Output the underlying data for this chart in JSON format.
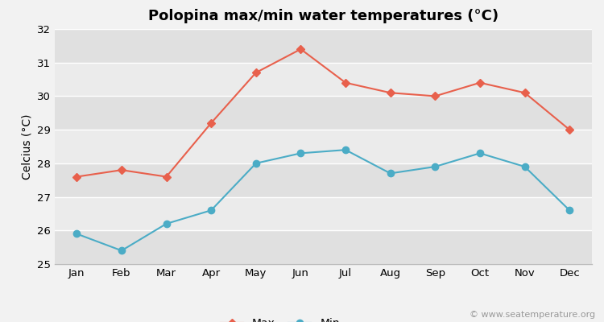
{
  "title": "Polopina max/min water temperatures (°C)",
  "ylabel": "Celcius (°C)",
  "months": [
    "Jan",
    "Feb",
    "Mar",
    "Apr",
    "May",
    "Jun",
    "Jul",
    "Aug",
    "Sep",
    "Oct",
    "Nov",
    "Dec"
  ],
  "max_temps": [
    27.6,
    27.8,
    27.6,
    29.2,
    30.7,
    31.4,
    30.4,
    30.1,
    30.0,
    30.4,
    30.1,
    29.0
  ],
  "min_temps": [
    25.9,
    25.4,
    26.2,
    26.6,
    28.0,
    28.3,
    28.4,
    27.7,
    27.9,
    28.3,
    27.9,
    26.6
  ],
  "max_color": "#e8604c",
  "min_color": "#4bacc6",
  "bg_color": "#f2f2f2",
  "band_light": "#ebebeb",
  "band_dark": "#e0e0e0",
  "grid_color": "#ffffff",
  "ylim": [
    25,
    32
  ],
  "yticks": [
    25,
    26,
    27,
    28,
    29,
    30,
    31,
    32
  ],
  "legend_labels": [
    "Max",
    "Min"
  ],
  "watermark": "© www.seatemperature.org",
  "title_fontsize": 13,
  "label_fontsize": 10,
  "tick_fontsize": 9.5,
  "watermark_fontsize": 8
}
